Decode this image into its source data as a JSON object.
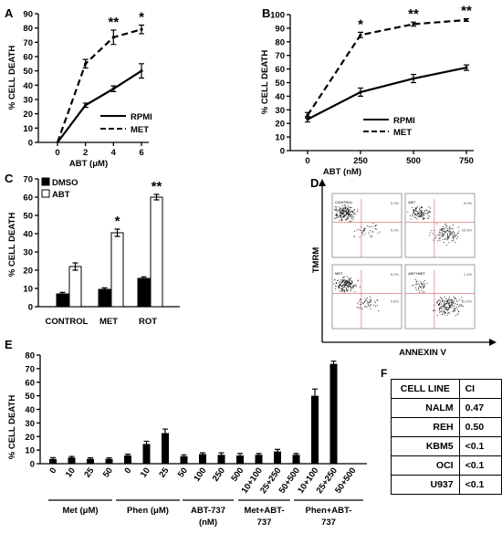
{
  "chart_data": [
    {
      "panel": "A",
      "type": "line",
      "xlabel": "ABT (μM)",
      "ylabel": "% CELL DEATH",
      "x": [
        0,
        2,
        4,
        6
      ],
      "xlim": [
        0,
        6
      ],
      "ylim": [
        0,
        90
      ],
      "yticks": [
        0,
        10,
        20,
        30,
        40,
        50,
        60,
        70,
        80,
        90
      ],
      "series": [
        {
          "name": "RPMI",
          "style": "solid",
          "values": [
            0,
            26,
            37.5,
            50
          ],
          "errors": [
            0,
            1.5,
            2,
            5
          ]
        },
        {
          "name": "MET",
          "style": "dashed",
          "values": [
            0,
            55,
            73.5,
            79
          ],
          "errors": [
            0,
            3,
            5,
            3
          ]
        }
      ],
      "annotations": [
        {
          "x": 4,
          "text": "**"
        },
        {
          "x": 6,
          "text": "*"
        }
      ],
      "legend_position": "bottom-right"
    },
    {
      "panel": "B",
      "type": "line",
      "xlabel": "ABT (nM)",
      "ylabel": "% CELL DEATH",
      "x": [
        0,
        250,
        500,
        750
      ],
      "xlim": [
        0,
        750
      ],
      "ylim": [
        0,
        100
      ],
      "yticks": [
        0,
        10,
        20,
        30,
        40,
        50,
        60,
        70,
        80,
        90,
        100
      ],
      "series": [
        {
          "name": "RPMI",
          "style": "solid",
          "values": [
            23,
            43,
            53,
            61
          ],
          "errors": [
            2,
            3,
            3,
            2
          ]
        },
        {
          "name": "MET",
          "style": "dashed",
          "values": [
            26,
            85,
            93,
            96
          ],
          "errors": [
            2,
            2,
            1.5,
            1
          ]
        }
      ],
      "annotations": [
        {
          "x": 250,
          "text": "*"
        },
        {
          "x": 500,
          "text": "**"
        },
        {
          "x": 750,
          "text": "**"
        }
      ],
      "legend_position": "bottom-right"
    },
    {
      "panel": "C",
      "type": "bar",
      "ylabel": "% CELL DEATH",
      "categories": [
        "CONTROL",
        "MET",
        "ROT"
      ],
      "ylim": [
        0,
        70
      ],
      "yticks": [
        0,
        10,
        20,
        30,
        40,
        50,
        60,
        70
      ],
      "series": [
        {
          "name": "DMSO",
          "fill": "#000000",
          "values": [
            7,
            9.5,
            15.5
          ],
          "errors": [
            0.8,
            0.8,
            0.8
          ]
        },
        {
          "name": "ABT",
          "fill": "#ffffff",
          "values": [
            22,
            40.5,
            60
          ],
          "errors": [
            2,
            2,
            1.5
          ]
        }
      ],
      "annotations": [
        {
          "category": "MET",
          "text": "*"
        },
        {
          "category": "ROT",
          "text": "**"
        }
      ],
      "legend_position": "top-left"
    },
    {
      "panel": "E",
      "type": "bar",
      "ylabel": "% CELL DEATH",
      "categories": [
        "0",
        "10",
        "25",
        "50",
        "0",
        "10",
        "25",
        "50",
        "100",
        "250",
        "500",
        "10+100",
        "25+250",
        "50+500",
        "10+100",
        "25+250",
        "50+500"
      ],
      "values": [
        3.5,
        4.5,
        3.5,
        3.5,
        6,
        14.5,
        22.5,
        5.5,
        7,
        6.5,
        6,
        6.5,
        9,
        6.5,
        50,
        73.5,
        0
      ],
      "errors": [
        1,
        0.8,
        0.8,
        0.8,
        1,
        2,
        3,
        1,
        1,
        1.5,
        1.5,
        1,
        1.5,
        1,
        5,
        2,
        0
      ],
      "ylim": [
        0,
        80
      ],
      "yticks": [
        0,
        10,
        20,
        30,
        40,
        50,
        60,
        70,
        80
      ],
      "groups": [
        {
          "label": "Met (μM)",
          "count": 4
        },
        {
          "label": "Phen (μM)",
          "count": 4
        },
        {
          "label": "ABT-737 (nM)",
          "count": 3
        },
        {
          "label": "Met+ABT-737",
          "count": 3
        },
        {
          "label": "Phen+ABT-737",
          "count": 3
        }
      ],
      "fill": "#000000"
    }
  ],
  "panels": {
    "A": "A",
    "B": "B",
    "C": "C",
    "D": "D",
    "E": "E",
    "F": "F"
  },
  "flow": {
    "ylabel": "TMRM",
    "xlabel": "ANNEXIN V",
    "quadrants": [
      {
        "title": "CONTROL",
        "top_right": "9.3%",
        "bottom_right": "5.3%"
      },
      {
        "title": "ABT",
        "top_right": "6.0%",
        "bottom_right": "33.5%"
      },
      {
        "title": "MET",
        "top_right": "8.2%",
        "bottom_right": "9.8%"
      },
      {
        "title": "ABT+MET",
        "top_right": "1.4%",
        "bottom_right": "61.5%"
      }
    ]
  },
  "table": {
    "headers": [
      "CELL LINE",
      "CI"
    ],
    "rows": [
      [
        "NALM",
        "0.47"
      ],
      [
        "REH",
        "0.50"
      ],
      [
        "KBM5",
        "<0.1"
      ],
      [
        "OCI",
        "<0.1"
      ],
      [
        "U937",
        "<0.1"
      ]
    ]
  }
}
